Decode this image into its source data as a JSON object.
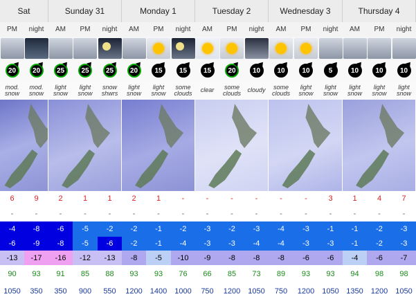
{
  "days": [
    {
      "name": "Sat"
    },
    {
      "name": "Sunday 31"
    },
    {
      "name": "Monday 1"
    },
    {
      "name": "Tuesday 2"
    },
    {
      "name": "Wednesday 3"
    },
    {
      "name": "Thursday 4"
    }
  ],
  "periods": [
    "PM",
    "night",
    "AM",
    "PM",
    "night",
    "AM",
    "PM",
    "night",
    "AM",
    "PM",
    "night",
    "AM",
    "PM",
    "night",
    "AM",
    "PM",
    "night"
  ],
  "icons": [
    "snow-cloud-icon",
    "snow-night-icon",
    "snow-cloud-icon",
    "snow-cloud-icon",
    "moon-cloud-icon",
    "snow-cloud-icon",
    "sun-cloud-icon",
    "moon-cloud-icon",
    "sun-icon",
    "sun-cloud-icon",
    "cloud-icon",
    "sun-cloud-icon",
    "sun-cloud-icon",
    "snow-cloud-icon",
    "snow-cloud-icon",
    "snow-cloud-icon",
    "snow-cloud-icon"
  ],
  "wind": [
    {
      "v": "20",
      "green": true
    },
    {
      "v": "20",
      "green": true
    },
    {
      "v": "25",
      "green": true
    },
    {
      "v": "25",
      "green": true
    },
    {
      "v": "25",
      "green": true
    },
    {
      "v": "20",
      "green": true
    },
    {
      "v": "15",
      "green": false
    },
    {
      "v": "15",
      "green": false
    },
    {
      "v": "15",
      "green": false
    },
    {
      "v": "20",
      "green": true
    },
    {
      "v": "10",
      "green": false
    },
    {
      "v": "10",
      "green": false
    },
    {
      "v": "10",
      "green": false
    },
    {
      "v": "5",
      "green": false
    },
    {
      "v": "10",
      "green": false
    },
    {
      "v": "10",
      "green": false
    },
    {
      "v": "10",
      "green": false
    }
  ],
  "summary": [
    [
      "mod.",
      "snow"
    ],
    [
      "mod.",
      "snow"
    ],
    [
      "light",
      "snow"
    ],
    [
      "light",
      "snow"
    ],
    [
      "snow",
      "shwrs"
    ],
    [
      "light",
      "snow"
    ],
    [
      "light",
      "snow"
    ],
    [
      "some",
      "clouds"
    ],
    [
      "clear",
      ""
    ],
    [
      "some",
      "clouds"
    ],
    [
      "cloudy",
      ""
    ],
    [
      "some",
      "clouds"
    ],
    [
      "light",
      "snow"
    ],
    [
      "light",
      "snow"
    ],
    [
      "light",
      "snow"
    ],
    [
      "light",
      "snow"
    ],
    [
      "light",
      "snow"
    ]
  ],
  "rain": [
    "6",
    "9",
    "2",
    "1",
    "1",
    "2",
    "1",
    "-",
    "-",
    "-",
    "-",
    "-",
    "-",
    "3",
    "1",
    "4",
    "7"
  ],
  "snow": [
    "-",
    "-",
    "-",
    "-",
    "-",
    "-",
    "-",
    "-",
    "-",
    "-",
    "-",
    "-",
    "-",
    "-",
    "-",
    "-",
    "-"
  ],
  "max_temp": [
    "-4",
    "-8",
    "-6",
    "-5",
    "-2",
    "-2",
    "-1",
    "-2",
    "-3",
    "-2",
    "-3",
    "-4",
    "-3",
    "-1",
    "-1",
    "-2",
    "-3"
  ],
  "min_temp": [
    "-6",
    "-9",
    "-8",
    "-5",
    "-6",
    "-2",
    "-1",
    "-4",
    "-3",
    "-3",
    "-4",
    "-4",
    "-3",
    "-3",
    "-1",
    "-2",
    "-3"
  ],
  "chill": [
    "-13",
    "-17",
    "-16",
    "-12",
    "-13",
    "-8",
    "-5",
    "-10",
    "-9",
    "-8",
    "-8",
    "-8",
    "-6",
    "-6",
    "-4",
    "-6",
    "-7"
  ],
  "humidity": [
    "90",
    "93",
    "91",
    "85",
    "88",
    "93",
    "93",
    "76",
    "66",
    "85",
    "73",
    "89",
    "93",
    "93",
    "94",
    "98",
    "98"
  ],
  "freezing_level": [
    "1050",
    "350",
    "350",
    "900",
    "550",
    "1200",
    "1400",
    "1000",
    "750",
    "1200",
    "1050",
    "750",
    "1200",
    "1050",
    "1350",
    "1200",
    "1050"
  ],
  "colors": {
    "deep_blue": "#0000e0",
    "mid_blue": "#1a6fe8",
    "light_blue": "#bcd0f5",
    "lavender": "#b0a8ef",
    "pink": "#f0a0f0",
    "pale": "#c8c0f5"
  }
}
